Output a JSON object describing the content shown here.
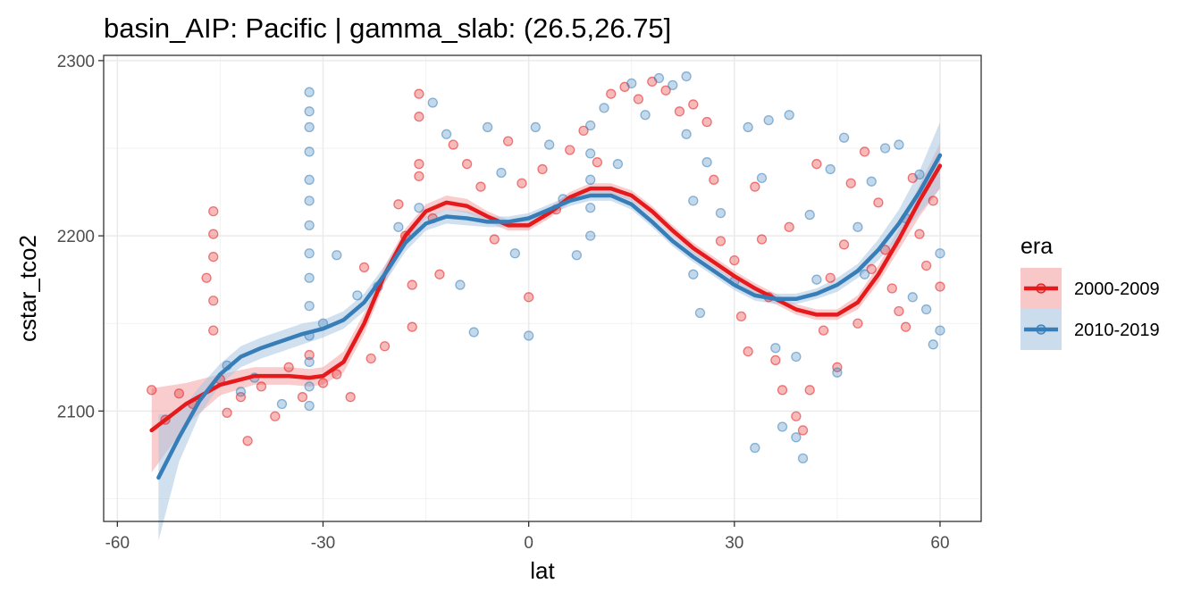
{
  "chart_data": {
    "type": "scatter",
    "title": "basin_AIP: Pacific | gamma_slab:  (26.5,26.75]",
    "xlabel": "lat",
    "ylabel": "cstar_tco2",
    "xlim": [
      -62,
      66
    ],
    "ylim": [
      2037,
      2303
    ],
    "x_ticks": [
      -60,
      -30,
      0,
      30,
      60
    ],
    "x_tick_labels": [
      "-60",
      "-30",
      "0",
      "30",
      "60"
    ],
    "y_ticks": [
      2100,
      2200,
      2300
    ],
    "y_tick_labels": [
      "2100",
      "2200",
      "2300"
    ],
    "grid": true,
    "legend": {
      "title": "era",
      "position": "right"
    },
    "series": [
      {
        "name": "2000-2009",
        "color": "#E41A1C",
        "fill": "#F4A3A4",
        "smooth_x": [
          -55,
          -50,
          -45,
          -40,
          -35,
          -32,
          -30,
          -27,
          -24,
          -21,
          -18,
          -15,
          -12,
          -9,
          -6,
          -3,
          0,
          3,
          6,
          9,
          12,
          15,
          18,
          21,
          24,
          27,
          30,
          33,
          36,
          39,
          42,
          45,
          48,
          51,
          54,
          57,
          60
        ],
        "smooth_y": [
          2089,
          2104,
          2115,
          2120,
          2120,
          2119,
          2120,
          2128,
          2150,
          2178,
          2200,
          2214,
          2219,
          2217,
          2211,
          2206,
          2206,
          2213,
          2222,
          2227,
          2227,
          2223,
          2214,
          2203,
          2193,
          2185,
          2177,
          2170,
          2164,
          2158,
          2155,
          2155,
          2162,
          2178,
          2198,
          2220,
          2240
        ],
        "band_halfwidth": [
          24,
          12,
          6,
          5,
          5,
          5,
          5,
          6,
          6,
          5,
          4,
          4,
          4,
          4,
          3,
          3,
          3,
          3,
          3,
          3,
          3,
          3,
          3,
          3,
          3,
          3,
          3,
          3,
          3,
          3,
          3,
          3,
          4,
          5,
          6,
          9,
          13
        ],
        "points": [
          {
            "x": -55,
            "y": 2112
          },
          {
            "x": -53,
            "y": 2095
          },
          {
            "x": -51,
            "y": 2110
          },
          {
            "x": -49,
            "y": 2104
          },
          {
            "x": -47,
            "y": 2176
          },
          {
            "x": -46,
            "y": 2214
          },
          {
            "x": -46,
            "y": 2201
          },
          {
            "x": -46,
            "y": 2188
          },
          {
            "x": -46,
            "y": 2163
          },
          {
            "x": -46,
            "y": 2146
          },
          {
            "x": -45,
            "y": 2118
          },
          {
            "x": -44,
            "y": 2099
          },
          {
            "x": -42,
            "y": 2108
          },
          {
            "x": -41,
            "y": 2083
          },
          {
            "x": -39,
            "y": 2114
          },
          {
            "x": -37,
            "y": 2097
          },
          {
            "x": -35,
            "y": 2125
          },
          {
            "x": -33,
            "y": 2108
          },
          {
            "x": -32,
            "y": 2132
          },
          {
            "x": -30,
            "y": 2116
          },
          {
            "x": -28,
            "y": 2121
          },
          {
            "x": -26,
            "y": 2108
          },
          {
            "x": -24,
            "y": 2182
          },
          {
            "x": -23,
            "y": 2130
          },
          {
            "x": -21,
            "y": 2137
          },
          {
            "x": -19,
            "y": 2218
          },
          {
            "x": -18,
            "y": 2200
          },
          {
            "x": -17,
            "y": 2172
          },
          {
            "x": -17,
            "y": 2148
          },
          {
            "x": -16,
            "y": 2281
          },
          {
            "x": -16,
            "y": 2268
          },
          {
            "x": -16,
            "y": 2241
          },
          {
            "x": -16,
            "y": 2234
          },
          {
            "x": -14,
            "y": 2210
          },
          {
            "x": -13,
            "y": 2178
          },
          {
            "x": -11,
            "y": 2252
          },
          {
            "x": -9,
            "y": 2241
          },
          {
            "x": -7,
            "y": 2228
          },
          {
            "x": -5,
            "y": 2198
          },
          {
            "x": -3,
            "y": 2254
          },
          {
            "x": -1,
            "y": 2230
          },
          {
            "x": 0,
            "y": 2165
          },
          {
            "x": 2,
            "y": 2238
          },
          {
            "x": 4,
            "y": 2215
          },
          {
            "x": 6,
            "y": 2249
          },
          {
            "x": 8,
            "y": 2260
          },
          {
            "x": 10,
            "y": 2242
          },
          {
            "x": 12,
            "y": 2281
          },
          {
            "x": 14,
            "y": 2285
          },
          {
            "x": 16,
            "y": 2278
          },
          {
            "x": 18,
            "y": 2288
          },
          {
            "x": 20,
            "y": 2283
          },
          {
            "x": 22,
            "y": 2271
          },
          {
            "x": 24,
            "y": 2275
          },
          {
            "x": 26,
            "y": 2265
          },
          {
            "x": 27,
            "y": 2232
          },
          {
            "x": 28,
            "y": 2197
          },
          {
            "x": 30,
            "y": 2186
          },
          {
            "x": 31,
            "y": 2154
          },
          {
            "x": 32,
            "y": 2134
          },
          {
            "x": 33,
            "y": 2228
          },
          {
            "x": 34,
            "y": 2198
          },
          {
            "x": 35,
            "y": 2165
          },
          {
            "x": 36,
            "y": 2129
          },
          {
            "x": 37,
            "y": 2112
          },
          {
            "x": 38,
            "y": 2205
          },
          {
            "x": 39,
            "y": 2097
          },
          {
            "x": 40,
            "y": 2089
          },
          {
            "x": 41,
            "y": 2112
          },
          {
            "x": 42,
            "y": 2241
          },
          {
            "x": 43,
            "y": 2146
          },
          {
            "x": 44,
            "y": 2176
          },
          {
            "x": 45,
            "y": 2125
          },
          {
            "x": 46,
            "y": 2195
          },
          {
            "x": 47,
            "y": 2230
          },
          {
            "x": 48,
            "y": 2150
          },
          {
            "x": 49,
            "y": 2248
          },
          {
            "x": 50,
            "y": 2181
          },
          {
            "x": 51,
            "y": 2219
          },
          {
            "x": 52,
            "y": 2192
          },
          {
            "x": 53,
            "y": 2170
          },
          {
            "x": 54,
            "y": 2157
          },
          {
            "x": 55,
            "y": 2148
          },
          {
            "x": 56,
            "y": 2233
          },
          {
            "x": 57,
            "y": 2201
          },
          {
            "x": 58,
            "y": 2183
          },
          {
            "x": 59,
            "y": 2220
          },
          {
            "x": 60,
            "y": 2171
          }
        ]
      },
      {
        "name": "2010-2019",
        "color": "#377EB8",
        "fill": "#A9C7E1",
        "smooth_x": [
          -54,
          -51,
          -48,
          -45,
          -42,
          -39,
          -36,
          -33,
          -30,
          -27,
          -24,
          -21,
          -18,
          -15,
          -12,
          -9,
          -6,
          -3,
          0,
          3,
          6,
          9,
          12,
          15,
          18,
          21,
          24,
          27,
          30,
          33,
          36,
          39,
          42,
          45,
          48,
          51,
          54,
          57,
          60
        ],
        "smooth_y": [
          2062,
          2085,
          2106,
          2121,
          2131,
          2136,
          2140,
          2144,
          2147,
          2152,
          2162,
          2178,
          2196,
          2207,
          2211,
          2210,
          2208,
          2208,
          2210,
          2215,
          2220,
          2223,
          2223,
          2218,
          2208,
          2197,
          2188,
          2180,
          2172,
          2166,
          2164,
          2164,
          2167,
          2172,
          2180,
          2192,
          2207,
          2225,
          2246
        ],
        "band_halfwidth": [
          36,
          14,
          8,
          6,
          6,
          6,
          6,
          6,
          5,
          5,
          5,
          5,
          5,
          4,
          4,
          4,
          3,
          3,
          3,
          3,
          3,
          3,
          3,
          3,
          3,
          3,
          3,
          3,
          3,
          3,
          3,
          3,
          3,
          4,
          4,
          6,
          8,
          12,
          19
        ],
        "points": [
          {
            "x": -44,
            "y": 2126
          },
          {
            "x": -42,
            "y": 2111
          },
          {
            "x": -40,
            "y": 2119
          },
          {
            "x": -36,
            "y": 2104
          },
          {
            "x": -32,
            "y": 2282
          },
          {
            "x": -32,
            "y": 2271
          },
          {
            "x": -32,
            "y": 2262
          },
          {
            "x": -32,
            "y": 2248
          },
          {
            "x": -32,
            "y": 2232
          },
          {
            "x": -32,
            "y": 2220
          },
          {
            "x": -32,
            "y": 2206
          },
          {
            "x": -32,
            "y": 2190
          },
          {
            "x": -32,
            "y": 2176
          },
          {
            "x": -32,
            "y": 2160
          },
          {
            "x": -32,
            "y": 2143
          },
          {
            "x": -32,
            "y": 2128
          },
          {
            "x": -32,
            "y": 2114
          },
          {
            "x": -32,
            "y": 2103
          },
          {
            "x": -30,
            "y": 2150
          },
          {
            "x": -28,
            "y": 2189
          },
          {
            "x": -25,
            "y": 2166
          },
          {
            "x": -22,
            "y": 2171
          },
          {
            "x": -19,
            "y": 2205
          },
          {
            "x": -16,
            "y": 2216
          },
          {
            "x": -14,
            "y": 2276
          },
          {
            "x": -12,
            "y": 2258
          },
          {
            "x": -10,
            "y": 2172
          },
          {
            "x": -8,
            "y": 2145
          },
          {
            "x": -6,
            "y": 2262
          },
          {
            "x": -4,
            "y": 2236
          },
          {
            "x": -2,
            "y": 2190
          },
          {
            "x": 0,
            "y": 2143
          },
          {
            "x": 1,
            "y": 2262
          },
          {
            "x": 3,
            "y": 2252
          },
          {
            "x": 5,
            "y": 2221
          },
          {
            "x": 7,
            "y": 2189
          },
          {
            "x": 9,
            "y": 2263
          },
          {
            "x": 9,
            "y": 2247
          },
          {
            "x": 9,
            "y": 2232
          },
          {
            "x": 9,
            "y": 2216
          },
          {
            "x": 9,
            "y": 2200
          },
          {
            "x": 11,
            "y": 2273
          },
          {
            "x": 13,
            "y": 2241
          },
          {
            "x": 15,
            "y": 2287
          },
          {
            "x": 17,
            "y": 2269
          },
          {
            "x": 19,
            "y": 2290
          },
          {
            "x": 21,
            "y": 2286
          },
          {
            "x": 23,
            "y": 2291
          },
          {
            "x": 23,
            "y": 2258
          },
          {
            "x": 24,
            "y": 2220
          },
          {
            "x": 24,
            "y": 2178
          },
          {
            "x": 25,
            "y": 2156
          },
          {
            "x": 26,
            "y": 2242
          },
          {
            "x": 28,
            "y": 2213
          },
          {
            "x": 30,
            "y": 2174
          },
          {
            "x": 32,
            "y": 2262
          },
          {
            "x": 34,
            "y": 2233
          },
          {
            "x": 35,
            "y": 2266
          },
          {
            "x": 36,
            "y": 2136
          },
          {
            "x": 37,
            "y": 2091
          },
          {
            "x": 38,
            "y": 2269
          },
          {
            "x": 39,
            "y": 2131
          },
          {
            "x": 39,
            "y": 2085
          },
          {
            "x": 40,
            "y": 2073
          },
          {
            "x": 41,
            "y": 2212
          },
          {
            "x": 42,
            "y": 2175
          },
          {
            "x": 44,
            "y": 2238
          },
          {
            "x": 45,
            "y": 2122
          },
          {
            "x": 46,
            "y": 2256
          },
          {
            "x": 48,
            "y": 2205
          },
          {
            "x": 49,
            "y": 2178
          },
          {
            "x": 50,
            "y": 2231
          },
          {
            "x": 52,
            "y": 2250
          },
          {
            "x": 54,
            "y": 2252
          },
          {
            "x": 55,
            "y": 2210
          },
          {
            "x": 56,
            "y": 2165
          },
          {
            "x": 57,
            "y": 2235
          },
          {
            "x": 58,
            "y": 2158
          },
          {
            "x": 59,
            "y": 2138
          },
          {
            "x": 60,
            "y": 2190
          },
          {
            "x": 60,
            "y": 2146
          },
          {
            "x": 33,
            "y": 2079
          }
        ]
      }
    ]
  }
}
